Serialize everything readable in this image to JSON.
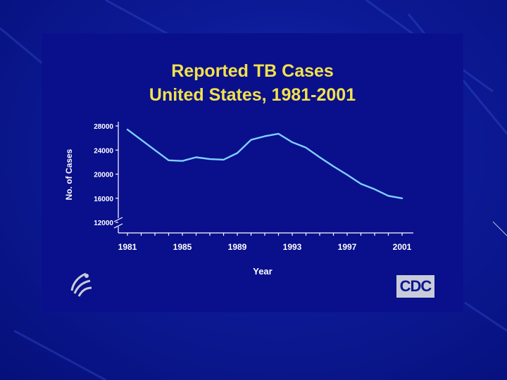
{
  "colors": {
    "background": "#0c1a96",
    "panel": "#0a0f8c",
    "title": "#f2e24a",
    "line": "#7fd0ff",
    "axis_text": "#ffffff"
  },
  "logos": {
    "cdc": "CDC",
    "hhs_seal": "hhs-eagle-seal"
  },
  "chart_data": {
    "type": "line",
    "title_lines": [
      "Reported TB Cases",
      "United States, 1981-2001"
    ],
    "title": "Reported TB Cases United States, 1981-2001",
    "xlabel": "Year",
    "ylabel": "No. of Cases",
    "xlim": [
      1981,
      2001
    ],
    "ylim": [
      12000,
      28000
    ],
    "y_axis_break": true,
    "grid": false,
    "x_ticks": [
      1981,
      1985,
      1989,
      1993,
      1997,
      2001
    ],
    "x_tick_labels": [
      "1981",
      "1985",
      "1989",
      "1993",
      "1997",
      "2001"
    ],
    "y_ticks": [
      12000,
      16000,
      20000,
      24000,
      28000
    ],
    "y_tick_labels": [
      "12000",
      "16000",
      "20000",
      "24000",
      "28000"
    ],
    "series": [
      {
        "x": [
          1981,
          1982,
          1983,
          1984,
          1985,
          1986,
          1987,
          1988,
          1989,
          1990,
          1991,
          1992,
          1993,
          1994,
          1995,
          1996,
          1997,
          1998,
          1999,
          2000,
          2001
        ],
        "values": [
          27400,
          25700,
          24000,
          22300,
          22200,
          22800,
          22500,
          22400,
          23500,
          25700,
          26300,
          26700,
          25300,
          24400,
          22800,
          21300,
          19900,
          18400,
          17500,
          16400,
          16000
        ]
      }
    ]
  }
}
